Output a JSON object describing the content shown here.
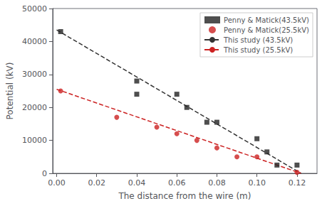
{
  "chart_data": {
    "type": "scatter",
    "xlabel": "The distance from the wire (m)",
    "ylabel": "Potential (kV)",
    "xlim": [
      -0.002,
      0.13
    ],
    "ylim": [
      0,
      50000
    ],
    "xticks": [
      {
        "value": 0,
        "label": "0.00"
      },
      0.02,
      0.04,
      0.06,
      0.08,
      {
        "value": 0.1,
        "label": "0.10"
      },
      0.12
    ],
    "yticks": [
      0,
      10000,
      20000,
      30000,
      40000,
      50000
    ],
    "grid": false,
    "legend": "upper right",
    "series": [
      {
        "name": "Penny & Matick(43.5kV)",
        "type": "scatter",
        "color": "#222222",
        "marker": "square",
        "x": [
          0.002,
          0.04,
          0.04,
          0.06,
          0.065,
          0.075,
          0.08,
          0.1,
          0.105,
          0.11,
          0.12
        ],
        "values": [
          43000,
          28000,
          24000,
          24000,
          20000,
          15500,
          15500,
          10500,
          6500,
          2500,
          2500
        ]
      },
      {
        "name": "Penny & Matick(25.5kV)",
        "type": "scatter",
        "color": "#cc2222",
        "marker": "circle",
        "x": [
          0.002,
          0.03,
          0.05,
          0.06,
          0.07,
          0.08,
          0.09,
          0.1,
          0.12
        ],
        "values": [
          25000,
          17000,
          14000,
          12000,
          10000,
          7700,
          5000,
          5000,
          300
        ]
      },
      {
        "name": "This study (43.5kV)",
        "type": "line",
        "color": "#333333",
        "line_style": "dashed",
        "x": [
          0.0,
          0.122
        ],
        "values": [
          43500,
          0
        ]
      },
      {
        "name": "This study (25.5kV)",
        "type": "line",
        "color": "#cc2222",
        "line_style": "dashed",
        "x": [
          0.0,
          0.122
        ],
        "values": [
          25500,
          0
        ]
      }
    ]
  }
}
